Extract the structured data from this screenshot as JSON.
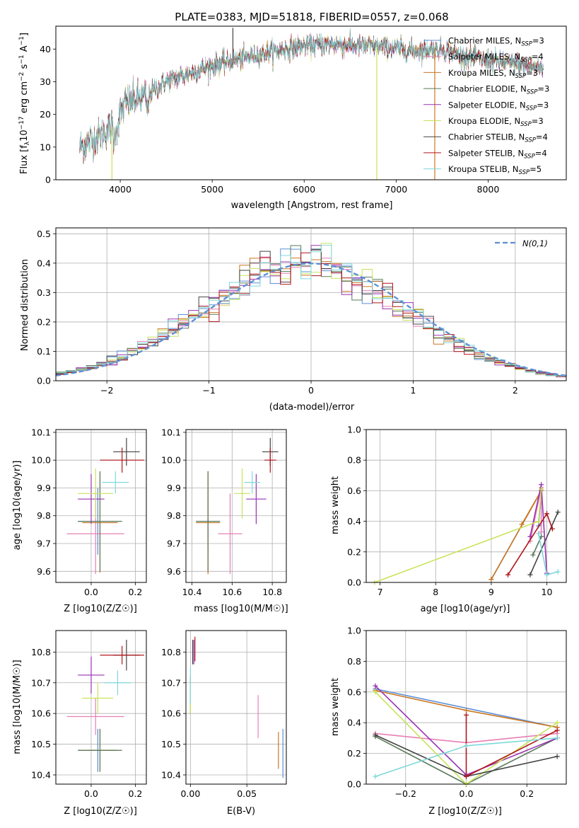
{
  "chart_data": [
    {
      "id": "spectrum",
      "type": "line",
      "title": "PLATE=0383, MJD=51818, FIBERID=0557, z=0.068",
      "xlabel": "wavelength [Angstrom, rest frame]",
      "ylabel": "Flux [f_λ10^-17 erg cm^-2 s^-1 A^-1]",
      "xlim": [
        3300,
        8850
      ],
      "ylim": [
        0,
        47
      ],
      "xticks": [
        4000,
        5000,
        6000,
        7000,
        8000
      ],
      "yticks": [
        0,
        10,
        20,
        30,
        40
      ],
      "grid": false,
      "legend_position": "top-right",
      "continuum": [
        [
          3560,
          10
        ],
        [
          3800,
          14
        ],
        [
          3950,
          17
        ],
        [
          4050,
          23
        ],
        [
          4300,
          26
        ],
        [
          4500,
          30
        ],
        [
          4800,
          33
        ],
        [
          5000,
          35
        ],
        [
          5300,
          37
        ],
        [
          5600,
          39
        ],
        [
          6000,
          41
        ],
        [
          6300,
          41.5
        ],
        [
          6600,
          41
        ],
        [
          6900,
          40.5
        ],
        [
          7200,
          39.5
        ],
        [
          7500,
          40
        ],
        [
          7700,
          38
        ],
        [
          8000,
          36.5
        ],
        [
          8300,
          35.5
        ],
        [
          8600,
          34
        ]
      ],
      "spikes": [
        {
          "x": 3910,
          "y": 0
        },
        {
          "x": 6790,
          "y": 0
        },
        {
          "x": 7420,
          "y": 0
        },
        {
          "x": 5225,
          "y": 46.5
        }
      ],
      "series": [
        {
          "name": "Chabrier MILES, N_SSP=3",
          "color": "#5b8fd6"
        },
        {
          "name": "Salpeter MILES, N_SSP=4",
          "color": "#e77fb5"
        },
        {
          "name": "Kroupa MILES, N_SSP=3",
          "color": "#cc7722"
        },
        {
          "name": "Chabrier ELODIE, N_SSP=3",
          "color": "#5a7a5a"
        },
        {
          "name": "Salpeter ELODIE, N_SSP=3",
          "color": "#9933b3"
        },
        {
          "name": "Kroupa ELODIE, N_SSP=3",
          "color": "#c8e35a"
        },
        {
          "name": "Chabrier STELIB, N_SSP=4",
          "color": "#444444"
        },
        {
          "name": "Salpeter STELIB, N_SSP=4",
          "color": "#b0161b"
        },
        {
          "name": "Kroupa STELIB, N_SSP=5",
          "color": "#7fd8dc"
        }
      ]
    },
    {
      "id": "residuals",
      "type": "step",
      "xlabel": "(data-model)/error",
      "ylabel": "Normed distribution",
      "xlim": [
        -2.5,
        2.5
      ],
      "ylim": [
        0,
        0.52
      ],
      "xticks": [
        -2,
        -1,
        0,
        1,
        2
      ],
      "yticks": [
        0.0,
        0.1,
        0.2,
        0.3,
        0.4,
        0.5
      ],
      "grid": true,
      "legend": {
        "label": "N(0,1)",
        "position": "top-right",
        "color": "#5b8fd6"
      },
      "bin_width": 0.1,
      "series_colors": [
        "#5b8fd6",
        "#e77fb5",
        "#cc7722",
        "#5a7a5a",
        "#9933b3",
        "#c8e35a",
        "#444444",
        "#b0161b",
        "#7fd8dc"
      ]
    },
    {
      "id": "age_vs_Z",
      "type": "errorbar",
      "xlabel": "Z [log10(Z/Z☉)]",
      "ylabel": "age  [log10(age/yr)]",
      "xlim": [
        -0.16,
        0.25
      ],
      "ylim": [
        9.56,
        10.11
      ],
      "xticks": [
        0.0,
        0.2
      ],
      "yticks": [
        9.6,
        9.7,
        9.8,
        9.9,
        10.0,
        10.1
      ],
      "grid": true,
      "points": [
        {
          "color": "#5b8fd6",
          "x": 0.03,
          "xerr": 0.09,
          "y": 9.78,
          "yerr": 0.12
        },
        {
          "color": "#e77fb5",
          "x": 0.02,
          "xerr": 0.13,
          "y": 9.735,
          "yerr": 0.145
        },
        {
          "color": "#cc7722",
          "x": 0.04,
          "xerr": 0.08,
          "y": 9.775,
          "yerr": 0.18
        },
        {
          "color": "#5a7a5a",
          "x": 0.04,
          "xerr": 0.1,
          "y": 9.78,
          "yerr": 0.18
        },
        {
          "color": "#9933b3",
          "x": 0.0,
          "xerr": 0.06,
          "y": 9.86,
          "yerr": 0.09
        },
        {
          "color": "#c8e35a",
          "x": 0.02,
          "xerr": 0.08,
          "y": 9.88,
          "yerr": 0.09
        },
        {
          "color": "#444444",
          "x": 0.16,
          "xerr": 0.06,
          "y": 10.03,
          "yerr": 0.05
        },
        {
          "color": "#b0161b",
          "x": 0.14,
          "xerr": 0.1,
          "y": 10.0,
          "yerr": 0.045
        },
        {
          "color": "#7fd8dc",
          "x": 0.11,
          "xerr": 0.06,
          "y": 9.92,
          "yerr": 0.04
        }
      ]
    },
    {
      "id": "age_vs_mass",
      "type": "errorbar",
      "xlabel": "mass [log10(M/M☉)]",
      "ylabel": "",
      "xlim": [
        10.37,
        10.87
      ],
      "ylim": [
        9.56,
        10.11
      ],
      "xticks": [
        10.4,
        10.6,
        10.8
      ],
      "yticks": [
        9.6,
        9.7,
        9.8,
        9.9,
        10.0,
        10.1
      ],
      "grid": true,
      "points": [
        {
          "color": "#5b8fd6",
          "x": 10.48,
          "xerr": 0.06,
          "y": 9.78,
          "yerr": 0.12
        },
        {
          "color": "#e77fb5",
          "x": 10.59,
          "xerr": 0.06,
          "y": 9.735,
          "yerr": 0.145
        },
        {
          "color": "#cc7722",
          "x": 10.48,
          "xerr": 0.06,
          "y": 9.775,
          "yerr": 0.185
        },
        {
          "color": "#5a7a5a",
          "x": 10.48,
          "xerr": 0.06,
          "y": 9.78,
          "yerr": 0.18
        },
        {
          "color": "#9933b3",
          "x": 10.72,
          "xerr": 0.05,
          "y": 9.86,
          "yerr": 0.09
        },
        {
          "color": "#c8e35a",
          "x": 10.65,
          "xerr": 0.04,
          "y": 9.88,
          "yerr": 0.09
        },
        {
          "color": "#444444",
          "x": 10.79,
          "xerr": 0.04,
          "y": 10.03,
          "yerr": 0.05
        },
        {
          "color": "#b0161b",
          "x": 10.79,
          "xerr": 0.03,
          "y": 10.0,
          "yerr": 0.045
        },
        {
          "color": "#7fd8dc",
          "x": 10.7,
          "xerr": 0.04,
          "y": 9.92,
          "yerr": 0.04
        }
      ]
    },
    {
      "id": "weight_vs_age",
      "type": "line",
      "xlabel": "age  [log10(age/yr)]",
      "ylabel": "mass weight",
      "xlim": [
        6.75,
        10.35
      ],
      "ylim": [
        0,
        1
      ],
      "xticks": [
        7,
        8,
        9,
        10
      ],
      "yticks": [
        0.0,
        0.2,
        0.4,
        0.6,
        0.8,
        1.0
      ],
      "grid": true,
      "series": [
        {
          "color": "#5b8fd6",
          "points": [
            [
              9.0,
              0.02
            ],
            [
              9.9,
              0.6
            ],
            [
              9.85,
              0.37
            ]
          ]
        },
        {
          "color": "#e77fb5",
          "points": [
            [
              9.7,
              0.27
            ],
            [
              9.9,
              0.62
            ],
            [
              9.9,
              0.33
            ]
          ]
        },
        {
          "color": "#cc7722",
          "points": [
            [
              9.0,
              0.02
            ],
            [
              9.9,
              0.6
            ],
            [
              9.55,
              0.38
            ]
          ]
        },
        {
          "color": "#5a7a5a",
          "points": [
            [
              9.75,
              0.18
            ],
            [
              9.9,
              0.3
            ]
          ]
        },
        {
          "color": "#9933b3",
          "points": [
            [
              9.7,
              0.3
            ],
            [
              9.9,
              0.64
            ],
            [
              10.0,
              0.06
            ]
          ]
        },
        {
          "color": "#c8e35a",
          "points": [
            [
              6.9,
              0.0
            ],
            [
              9.85,
              0.4
            ],
            [
              9.9,
              0.61
            ]
          ]
        },
        {
          "color": "#444444",
          "points": [
            [
              9.7,
              0.05
            ],
            [
              10.2,
              0.46
            ]
          ]
        },
        {
          "color": "#b0161b",
          "points": [
            [
              9.3,
              0.05
            ],
            [
              10.0,
              0.45
            ],
            [
              10.1,
              0.35
            ]
          ]
        },
        {
          "color": "#7fd8dc",
          "points": [
            [
              9.85,
              0.32
            ],
            [
              10.0,
              0.05
            ],
            [
              10.2,
              0.07
            ]
          ]
        }
      ]
    },
    {
      "id": "mass_vs_Z",
      "type": "errorbar",
      "xlabel": "Z [log10(Z/Z☉)]",
      "ylabel": "mass [log10(M/M☉)]",
      "xlim": [
        -0.16,
        0.25
      ],
      "ylim": [
        10.37,
        10.87
      ],
      "xticks": [
        0.0,
        0.2
      ],
      "yticks": [
        10.4,
        10.5,
        10.6,
        10.7,
        10.8
      ],
      "grid": true,
      "points": [
        {
          "color": "#5b8fd6",
          "x": 0.03,
          "xerr": 0.09,
          "y": 10.48,
          "yerr": 0.07
        },
        {
          "color": "#e77fb5",
          "x": 0.02,
          "xerr": 0.13,
          "y": 10.59,
          "yerr": 0.06
        },
        {
          "color": "#cc7722",
          "x": 0.04,
          "xerr": 0.08,
          "y": 10.48,
          "yerr": 0.07
        },
        {
          "color": "#5a7a5a",
          "x": 0.04,
          "xerr": 0.1,
          "y": 10.48,
          "yerr": 0.07
        },
        {
          "color": "#9933b3",
          "x": 0.0,
          "xerr": 0.06,
          "y": 10.725,
          "yerr": 0.06
        },
        {
          "color": "#c8e35a",
          "x": 0.03,
          "xerr": 0.07,
          "y": 10.65,
          "yerr": 0.05
        },
        {
          "color": "#444444",
          "x": 0.16,
          "xerr": 0.06,
          "y": 10.79,
          "yerr": 0.05
        },
        {
          "color": "#b0161b",
          "x": 0.14,
          "xerr": 0.1,
          "y": 10.79,
          "yerr": 0.03
        },
        {
          "color": "#7fd8dc",
          "x": 0.12,
          "xerr": 0.06,
          "y": 10.7,
          "yerr": 0.04
        }
      ]
    },
    {
      "id": "mass_vs_ebv",
      "type": "errorbar",
      "xlabel": "E(B-V)",
      "ylabel": "",
      "xlim": [
        -0.004,
        0.085
      ],
      "ylim": [
        10.37,
        10.87
      ],
      "xticks": [
        0.0,
        0.05
      ],
      "yticks": [
        10.4,
        10.5,
        10.6,
        10.7,
        10.8
      ],
      "grid": true,
      "points": [
        {
          "color": "#5b8fd6",
          "x": 0.082,
          "y": 10.47,
          "yerr": 0.08
        },
        {
          "color": "#e77fb5",
          "x": 0.06,
          "y": 10.59,
          "yerr": 0.07
        },
        {
          "color": "#cc7722",
          "x": 0.078,
          "y": 10.48,
          "yerr": 0.06
        },
        {
          "color": "#5a7a5a",
          "x": 0.0,
          "y": 10.66,
          "yerr": 0.06
        },
        {
          "color": "#9933b3",
          "x": 0.003,
          "y": 10.8,
          "yerr": 0.04
        },
        {
          "color": "#c8e35a",
          "x": 0.0,
          "y": 10.65,
          "yerr": 0.05
        },
        {
          "color": "#444444",
          "x": 0.002,
          "y": 10.8,
          "yerr": 0.04
        },
        {
          "color": "#b0161b",
          "x": 0.004,
          "y": 10.81,
          "yerr": 0.04
        },
        {
          "color": "#7fd8dc",
          "x": 0.0,
          "y": 10.69,
          "yerr": 0.06
        }
      ]
    },
    {
      "id": "weight_vs_Z",
      "type": "line",
      "xlabel": "Z [log10(Z/Z☉)]",
      "ylabel": "mass weight",
      "xlim": [
        -0.33,
        0.33
      ],
      "ylim": [
        0,
        1
      ],
      "xticks": [
        -0.2,
        0.0,
        0.2
      ],
      "yticks": [
        0.0,
        0.2,
        0.4,
        0.6,
        0.8,
        1.0
      ],
      "grid": true,
      "series": [
        {
          "color": "#5b8fd6",
          "points": [
            [
              -0.3,
              0.62
            ],
            [
              0.3,
              0.37
            ]
          ]
        },
        {
          "color": "#e77fb5",
          "points": [
            [
              -0.3,
              0.33
            ],
            [
              0.0,
              0.27
            ],
            [
              0.3,
              0.33
            ]
          ]
        },
        {
          "color": "#cc7722",
          "points": [
            [
              -0.3,
              0.61
            ],
            [
              0.0,
              0.48
            ],
            [
              0.3,
              0.37
            ]
          ]
        },
        {
          "color": "#5a7a5a",
          "points": [
            [
              -0.3,
              0.31
            ],
            [
              0.0,
              0.0
            ],
            [
              0.3,
              0.3
            ]
          ]
        },
        {
          "color": "#9933b3",
          "points": [
            [
              -0.3,
              0.64
            ],
            [
              0.0,
              0.06
            ],
            [
              0.3,
              0.3
            ]
          ]
        },
        {
          "color": "#c8e35a",
          "points": [
            [
              -0.3,
              0.6
            ],
            [
              0.0,
              0.0
            ],
            [
              0.3,
              0.4
            ]
          ]
        },
        {
          "color": "#444444",
          "points": [
            [
              -0.3,
              0.32
            ],
            [
              0.0,
              0.05
            ],
            [
              0.3,
              0.18
            ]
          ]
        },
        {
          "color": "#b0161b",
          "points": [
            [
              0.0,
              0.45
            ],
            [
              0.0,
              0.05
            ],
            [
              0.3,
              0.35
            ]
          ]
        },
        {
          "color": "#7fd8dc",
          "points": [
            [
              -0.3,
              0.05
            ],
            [
              0.0,
              0.25
            ],
            [
              0.3,
              0.3
            ]
          ]
        }
      ]
    }
  ]
}
